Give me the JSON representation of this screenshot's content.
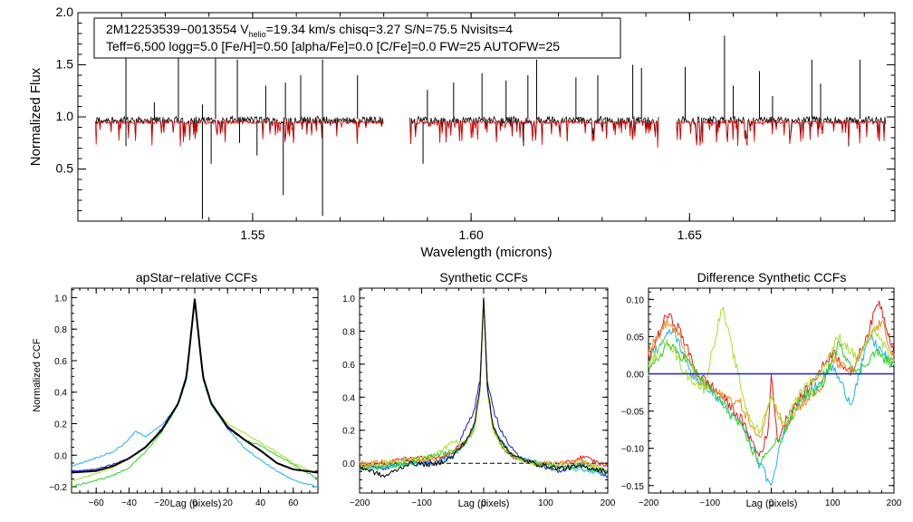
{
  "chart_data": [
    {
      "type": "line",
      "id": "spectrum",
      "title": "",
      "xlabel": "Wavelength (microns)",
      "ylabel": "Normalized Flux",
      "xlim": [
        1.51,
        1.697
      ],
      "ylim": [
        0.0,
        2.0
      ],
      "xticks": [
        1.55,
        1.6,
        1.65
      ],
      "xtick_labels": [
        "1.55",
        "1.60",
        "1.65"
      ],
      "yticks": [
        0.5,
        1.0,
        1.5,
        2.0
      ],
      "ytick_labels": [
        "0.5",
        "1.0",
        "1.5",
        "2.0"
      ],
      "chips": [
        [
          1.514,
          1.58
        ],
        [
          1.586,
          1.643
        ],
        [
          1.647,
          1.695
        ]
      ],
      "series": [
        {
          "name": "observed",
          "color": "#000000",
          "level": 0.97
        },
        {
          "name": "model",
          "color": "#e00000",
          "level": 0.95
        }
      ],
      "emission_spikes": [
        {
          "x": 1.521,
          "y": 1.6
        },
        {
          "x": 1.5275,
          "y": 1.14
        },
        {
          "x": 1.533,
          "y": 1.85
        },
        {
          "x": 1.5385,
          "y": 1.12
        },
        {
          "x": 1.5415,
          "y": 1.7
        },
        {
          "x": 1.5465,
          "y": 1.55
        },
        {
          "x": 1.553,
          "y": 1.3
        },
        {
          "x": 1.5575,
          "y": 1.33
        },
        {
          "x": 1.561,
          "y": 1.4
        },
        {
          "x": 1.566,
          "y": 1.55
        },
        {
          "x": 1.574,
          "y": 1.4
        },
        {
          "x": 1.59,
          "y": 1.26
        },
        {
          "x": 1.596,
          "y": 1.33
        },
        {
          "x": 1.6025,
          "y": 1.42
        },
        {
          "x": 1.608,
          "y": 1.35
        },
        {
          "x": 1.613,
          "y": 1.4
        },
        {
          "x": 1.615,
          "y": 1.55
        },
        {
          "x": 1.624,
          "y": 1.38
        },
        {
          "x": 1.629,
          "y": 1.4
        },
        {
          "x": 1.637,
          "y": 1.5
        },
        {
          "x": 1.639,
          "y": 1.47
        },
        {
          "x": 1.649,
          "y": 1.48
        },
        {
          "x": 1.658,
          "y": 1.78
        },
        {
          "x": 1.66,
          "y": 1.3
        },
        {
          "x": 1.666,
          "y": 1.44
        },
        {
          "x": 1.669,
          "y": 1.2
        },
        {
          "x": 1.678,
          "y": 1.55
        },
        {
          "x": 1.68,
          "y": 1.32
        },
        {
          "x": 1.689,
          "y": 1.55
        }
      ],
      "absorption_spikes": [
        {
          "x": 1.5385,
          "y": 0.02
        },
        {
          "x": 1.5405,
          "y": 0.55
        },
        {
          "x": 1.551,
          "y": 0.63
        },
        {
          "x": 1.557,
          "y": 0.25
        },
        {
          "x": 1.566,
          "y": 0.05
        },
        {
          "x": 1.589,
          "y": 0.55
        },
        {
          "x": 1.521,
          "y": 0.72
        },
        {
          "x": 1.547,
          "y": 0.75
        },
        {
          "x": 1.612,
          "y": 0.72
        }
      ],
      "annotation": {
        "line1_prefix": "2M12253539−0013554  V",
        "line1_sub": "helio",
        "line1_suffix": "=19.34 km/s  chisq=3.27  S/N=75.5  Nvisits=4",
        "line2": "Teff=6,500 logg=5.0 [Fe/H]=0.50 [alpha/Fe]=0.0 [C/Fe]=0.0 FW=25 AUTOFW=25"
      }
    },
    {
      "type": "line",
      "id": "ccf1",
      "title": "apStar−relative CCFs",
      "xlabel": "Lag (pixels)",
      "ylabel": "Normalized CCF",
      "xlim": [
        -75,
        75
      ],
      "ylim": [
        -0.24,
        1.06
      ],
      "xticks": [
        -60,
        -40,
        -20,
        0,
        20,
        40,
        60
      ],
      "xtick_labels": [
        "−60",
        "−40",
        "−20",
        "0",
        "20",
        "40",
        "60"
      ],
      "yticks": [
        -0.2,
        0.0,
        0.2,
        0.4,
        0.6,
        0.8,
        1.0
      ],
      "ytick_labels": [
        "−0.2",
        "0.0",
        "0.2",
        "0.4",
        "0.6",
        "0.8",
        "1.0"
      ],
      "series": [
        {
          "name": "cyan",
          "color": "#1fb4ee",
          "width": 1,
          "lx": [
            -75,
            -50,
            -42,
            -36,
            -30,
            -20,
            -10,
            -5,
            0,
            5,
            10,
            20,
            30,
            40,
            50,
            60,
            75
          ],
          "ly": [
            -0.07,
            0.02,
            0.08,
            0.15,
            0.12,
            0.19,
            0.32,
            0.48,
            0.98,
            0.48,
            0.32,
            0.17,
            0.05,
            -0.03,
            -0.1,
            -0.16,
            -0.2
          ]
        },
        {
          "name": "green",
          "color": "#2ad21e",
          "width": 1,
          "lx": [
            -75,
            -60,
            -50,
            -40,
            -30,
            -20,
            -10,
            -5,
            0,
            5,
            10,
            20,
            30,
            40,
            50,
            60,
            75
          ],
          "ly": [
            -0.2,
            -0.16,
            -0.13,
            -0.08,
            0.02,
            0.15,
            0.32,
            0.5,
            0.98,
            0.5,
            0.32,
            0.18,
            0.1,
            0.06,
            0.0,
            -0.06,
            -0.15
          ]
        },
        {
          "name": "yellow-green",
          "color": "#a8e02a",
          "width": 1,
          "lx": [
            -75,
            -60,
            -50,
            -40,
            -30,
            -20,
            -10,
            -5,
            0,
            5,
            10,
            20,
            30,
            40,
            50,
            60,
            75
          ],
          "ly": [
            -0.16,
            -0.12,
            -0.08,
            -0.02,
            0.05,
            0.16,
            0.33,
            0.5,
            0.99,
            0.5,
            0.33,
            0.2,
            0.14,
            0.08,
            0.02,
            -0.05,
            -0.12
          ]
        },
        {
          "name": "blue",
          "color": "#1a1ae0",
          "width": 1,
          "lx": [
            -75,
            -60,
            -50,
            -40,
            -30,
            -20,
            -10,
            -5,
            0,
            5,
            10,
            20,
            30,
            40,
            50,
            60,
            75
          ],
          "ly": [
            -0.1,
            -0.09,
            -0.06,
            -0.02,
            0.05,
            0.17,
            0.33,
            0.5,
            0.99,
            0.5,
            0.33,
            0.17,
            0.1,
            0.03,
            -0.05,
            -0.09,
            -0.11
          ]
        },
        {
          "name": "mean",
          "color": "#000000",
          "width": 2,
          "lx": [
            -75,
            -60,
            -50,
            -40,
            -30,
            -20,
            -10,
            -5,
            0,
            5,
            10,
            20,
            30,
            40,
            50,
            60,
            75
          ],
          "ly": [
            -0.11,
            -0.1,
            -0.07,
            -0.02,
            0.05,
            0.16,
            0.33,
            0.5,
            0.99,
            0.5,
            0.33,
            0.18,
            0.1,
            0.03,
            -0.05,
            -0.09,
            -0.11
          ]
        }
      ]
    },
    {
      "type": "line",
      "id": "ccf2",
      "title": "Synthetic CCFs",
      "xlabel": "Lag (pixels)",
      "ylabel": "",
      "xlim": [
        -200,
        200
      ],
      "ylim": [
        -0.18,
        1.06
      ],
      "xticks": [
        -200,
        -100,
        0,
        100,
        200
      ],
      "xtick_labels": [
        "−200",
        "−100",
        "0",
        "100",
        "200"
      ],
      "yticks": [
        0.0,
        0.2,
        0.4,
        0.6,
        0.8,
        1.0
      ],
      "ytick_labels": [
        "0.0",
        "0.2",
        "0.4",
        "0.6",
        "0.8",
        "1.0"
      ],
      "zero_line": 0.0,
      "series": [
        {
          "name": "blue",
          "color": "#1a1ae0",
          "width": 1,
          "lx": [
            -200,
            -160,
            -120,
            -80,
            -50,
            -30,
            -15,
            -6,
            0,
            6,
            15,
            30,
            50,
            80,
            120,
            160,
            200
          ],
          "ly": [
            0.0,
            -0.03,
            0.02,
            0.01,
            0.05,
            0.2,
            0.33,
            0.5,
            1.0,
            0.5,
            0.33,
            0.18,
            0.06,
            0.0,
            -0.05,
            0.0,
            -0.08
          ]
        },
        {
          "name": "red",
          "color": "#e02020",
          "width": 1,
          "lx": [
            -200,
            -160,
            -120,
            -80,
            -50,
            -30,
            -15,
            -6,
            0,
            6,
            15,
            30,
            50,
            80,
            120,
            160,
            200
          ],
          "ly": [
            -0.02,
            0.0,
            0.03,
            0.03,
            0.07,
            0.12,
            0.22,
            0.45,
            1.0,
            0.45,
            0.22,
            0.1,
            0.03,
            0.01,
            -0.02,
            0.04,
            -0.02
          ]
        },
        {
          "name": "orange",
          "color": "#f08a1a",
          "width": 1,
          "lx": [
            -200,
            -160,
            -120,
            -80,
            -50,
            -30,
            -15,
            -6,
            0,
            6,
            15,
            30,
            50,
            80,
            120,
            160,
            200
          ],
          "ly": [
            0.0,
            0.01,
            0.02,
            0.02,
            0.07,
            0.13,
            0.22,
            0.45,
            1.0,
            0.45,
            0.22,
            0.12,
            0.03,
            0.0,
            0.0,
            0.02,
            -0.05
          ]
        },
        {
          "name": "cyan",
          "color": "#1fb4ee",
          "width": 1,
          "lx": [
            -200,
            -160,
            -120,
            -80,
            -50,
            -30,
            -15,
            -6,
            0,
            6,
            15,
            30,
            50,
            80,
            120,
            160,
            200
          ],
          "ly": [
            -0.04,
            -0.02,
            0.0,
            0.0,
            0.04,
            0.12,
            0.22,
            0.45,
            1.0,
            0.45,
            0.22,
            0.12,
            0.04,
            0.01,
            -0.02,
            -0.04,
            -0.06
          ]
        },
        {
          "name": "green",
          "color": "#2ad21e",
          "width": 1,
          "lx": [
            -200,
            -160,
            -120,
            -80,
            -50,
            -30,
            -15,
            -6,
            0,
            6,
            15,
            30,
            50,
            80,
            120,
            160,
            200
          ],
          "ly": [
            -0.03,
            -0.02,
            0.0,
            0.05,
            0.07,
            0.12,
            0.2,
            0.44,
            1.0,
            0.44,
            0.2,
            0.1,
            0.04,
            0.0,
            -0.03,
            -0.02,
            -0.06
          ]
        },
        {
          "name": "yellow-green",
          "color": "#a8e02a",
          "width": 1,
          "lx": [
            -200,
            -160,
            -120,
            -80,
            -50,
            -30,
            -15,
            -6,
            0,
            6,
            15,
            30,
            50,
            80,
            120,
            160,
            200
          ],
          "ly": [
            -0.02,
            0.0,
            0.02,
            0.04,
            0.13,
            0.12,
            0.2,
            0.44,
            1.0,
            0.44,
            0.2,
            0.1,
            0.04,
            0.0,
            -0.01,
            0.0,
            -0.04
          ]
        },
        {
          "name": "black",
          "color": "#000000",
          "width": 1,
          "lx": [
            -200,
            -160,
            -120,
            -80,
            -50,
            -30,
            -15,
            -6,
            0,
            6,
            15,
            30,
            50,
            80,
            120,
            160,
            200
          ],
          "ly": [
            -0.02,
            -0.08,
            0.0,
            -0.01,
            0.04,
            0.13,
            0.23,
            0.46,
            1.0,
            0.46,
            0.23,
            0.12,
            0.04,
            0.0,
            -0.03,
            -0.02,
            -0.05
          ]
        }
      ]
    },
    {
      "type": "line",
      "id": "ccf3",
      "title": "Difference Synthetic CCFs",
      "xlabel": "Lag (pixels)",
      "ylabel": "",
      "xlim": [
        -200,
        200
      ],
      "ylim": [
        -0.16,
        0.115
      ],
      "xticks": [
        -200,
        -100,
        0,
        100,
        200
      ],
      "xtick_labels": [
        "−200",
        "−100",
        "0",
        "100",
        "200"
      ],
      "yticks": [
        -0.15,
        -0.1,
        -0.05,
        0.0,
        0.05,
        0.1
      ],
      "ytick_labels": [
        "−0.15",
        "−0.10",
        "−0.05",
        "0.00",
        "0.05",
        "0.10"
      ],
      "zero_line": 0.0,
      "series": [
        {
          "name": "cyan",
          "color": "#1fb4ee",
          "width": 1,
          "lx": [
            -200,
            -160,
            -130,
            -100,
            -70,
            -40,
            -20,
            0,
            20,
            40,
            70,
            100,
            130,
            160,
            180,
            200
          ],
          "ly": [
            0.02,
            0.06,
            0.0,
            -0.02,
            -0.05,
            -0.08,
            -0.12,
            -0.15,
            -0.08,
            -0.04,
            -0.02,
            0.01,
            -0.04,
            0.05,
            0.03,
            0.01
          ]
        },
        {
          "name": "red",
          "color": "#e02020",
          "width": 1,
          "lx": [
            -200,
            -170,
            -150,
            -120,
            -80,
            -50,
            -20,
            -5,
            0,
            10,
            30,
            60,
            100,
            130,
            160,
            175,
            200
          ],
          "ly": [
            0.02,
            0.08,
            0.06,
            0.0,
            -0.03,
            -0.06,
            -0.11,
            -0.08,
            0.0,
            -0.09,
            -0.05,
            -0.02,
            0.03,
            0.0,
            0.06,
            0.1,
            0.03
          ]
        },
        {
          "name": "orange",
          "color": "#f08a1a",
          "width": 1,
          "lx": [
            -200,
            -170,
            -150,
            -120,
            -80,
            -50,
            -20,
            0,
            20,
            50,
            80,
            100,
            130,
            160,
            180,
            200
          ],
          "ly": [
            0.03,
            0.07,
            0.05,
            -0.01,
            -0.03,
            -0.04,
            -0.09,
            -0.03,
            -0.07,
            -0.04,
            -0.02,
            0.02,
            0.0,
            0.05,
            0.07,
            0.02
          ]
        },
        {
          "name": "green",
          "color": "#2ad21e",
          "width": 1,
          "lx": [
            -200,
            -170,
            -140,
            -110,
            -80,
            -50,
            -20,
            0,
            20,
            50,
            80,
            110,
            140,
            170,
            200
          ],
          "ly": [
            0.0,
            0.04,
            0.02,
            -0.01,
            -0.04,
            -0.07,
            -0.12,
            -0.1,
            -0.08,
            -0.03,
            -0.02,
            0.04,
            0.0,
            0.03,
            0.01
          ]
        },
        {
          "name": "yellow-green",
          "color": "#a8e02a",
          "width": 1,
          "lx": [
            -200,
            -170,
            -140,
            -110,
            -80,
            -60,
            -40,
            -20,
            0,
            20,
            50,
            80,
            110,
            140,
            170,
            200
          ],
          "ly": [
            0.01,
            0.05,
            0.0,
            -0.02,
            0.09,
            0.02,
            -0.05,
            -0.08,
            -0.03,
            -0.07,
            -0.02,
            0.0,
            0.05,
            0.02,
            0.06,
            0.01
          ]
        },
        {
          "name": "blue",
          "color": "#1a1ae0",
          "width": 1.5,
          "lx": [
            -200,
            -100,
            0,
            100,
            200
          ],
          "ly": [
            0.0,
            0.0,
            0.0,
            0.0,
            0.0
          ]
        }
      ]
    }
  ]
}
